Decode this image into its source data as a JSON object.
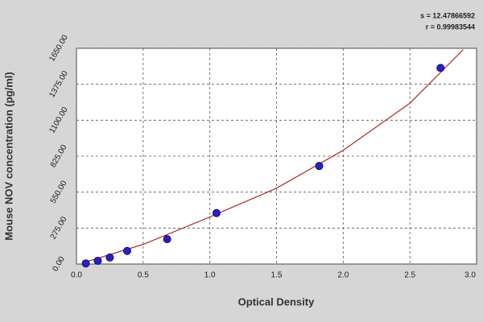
{
  "chart_data": {
    "type": "scatter",
    "x_label": "Optical Density",
    "y_label": "Mouse NOV concentration (pg/ml)",
    "annotations": [
      "s = 12.47866592",
      "r = 0.99983544"
    ],
    "xlim": [
      0,
      3
    ],
    "ylim": [
      0,
      1650
    ],
    "xticks": [
      {
        "value": 0,
        "label": "0.0"
      },
      0.5,
      {
        "value": 1,
        "label": "1.0"
      },
      1.5,
      {
        "value": 2,
        "label": "2.0"
      },
      2.5,
      {
        "value": 3,
        "label": "3.0"
      }
    ],
    "yticks": [
      {
        "value": 0,
        "label": "0.00"
      },
      {
        "value": 275,
        "label": "275.00"
      },
      {
        "value": 550,
        "label": "550.00"
      },
      {
        "value": 825,
        "label": "825.00"
      },
      {
        "value": 1100,
        "label": "1100.00"
      },
      {
        "value": 1375,
        "label": "1375.00"
      },
      {
        "value": 1650,
        "label": "1650.00"
      }
    ],
    "grid": true,
    "series": [
      {
        "mode": "line",
        "color": "#b02828",
        "x": [
          0.05,
          0.5,
          1.0,
          1.5,
          2.0,
          2.5,
          2.9
        ],
        "values": [
          10,
          150,
          360,
          580,
          870,
          1230,
          1640
        ]
      },
      {
        "mode": "markers",
        "color": "#2a1fc8",
        "x": [
          0.07,
          0.16,
          0.25,
          0.38,
          0.68,
          1.05,
          1.82,
          2.73
        ],
        "values": [
          5,
          25,
          50,
          100,
          190,
          390,
          750,
          1500
        ]
      }
    ]
  }
}
